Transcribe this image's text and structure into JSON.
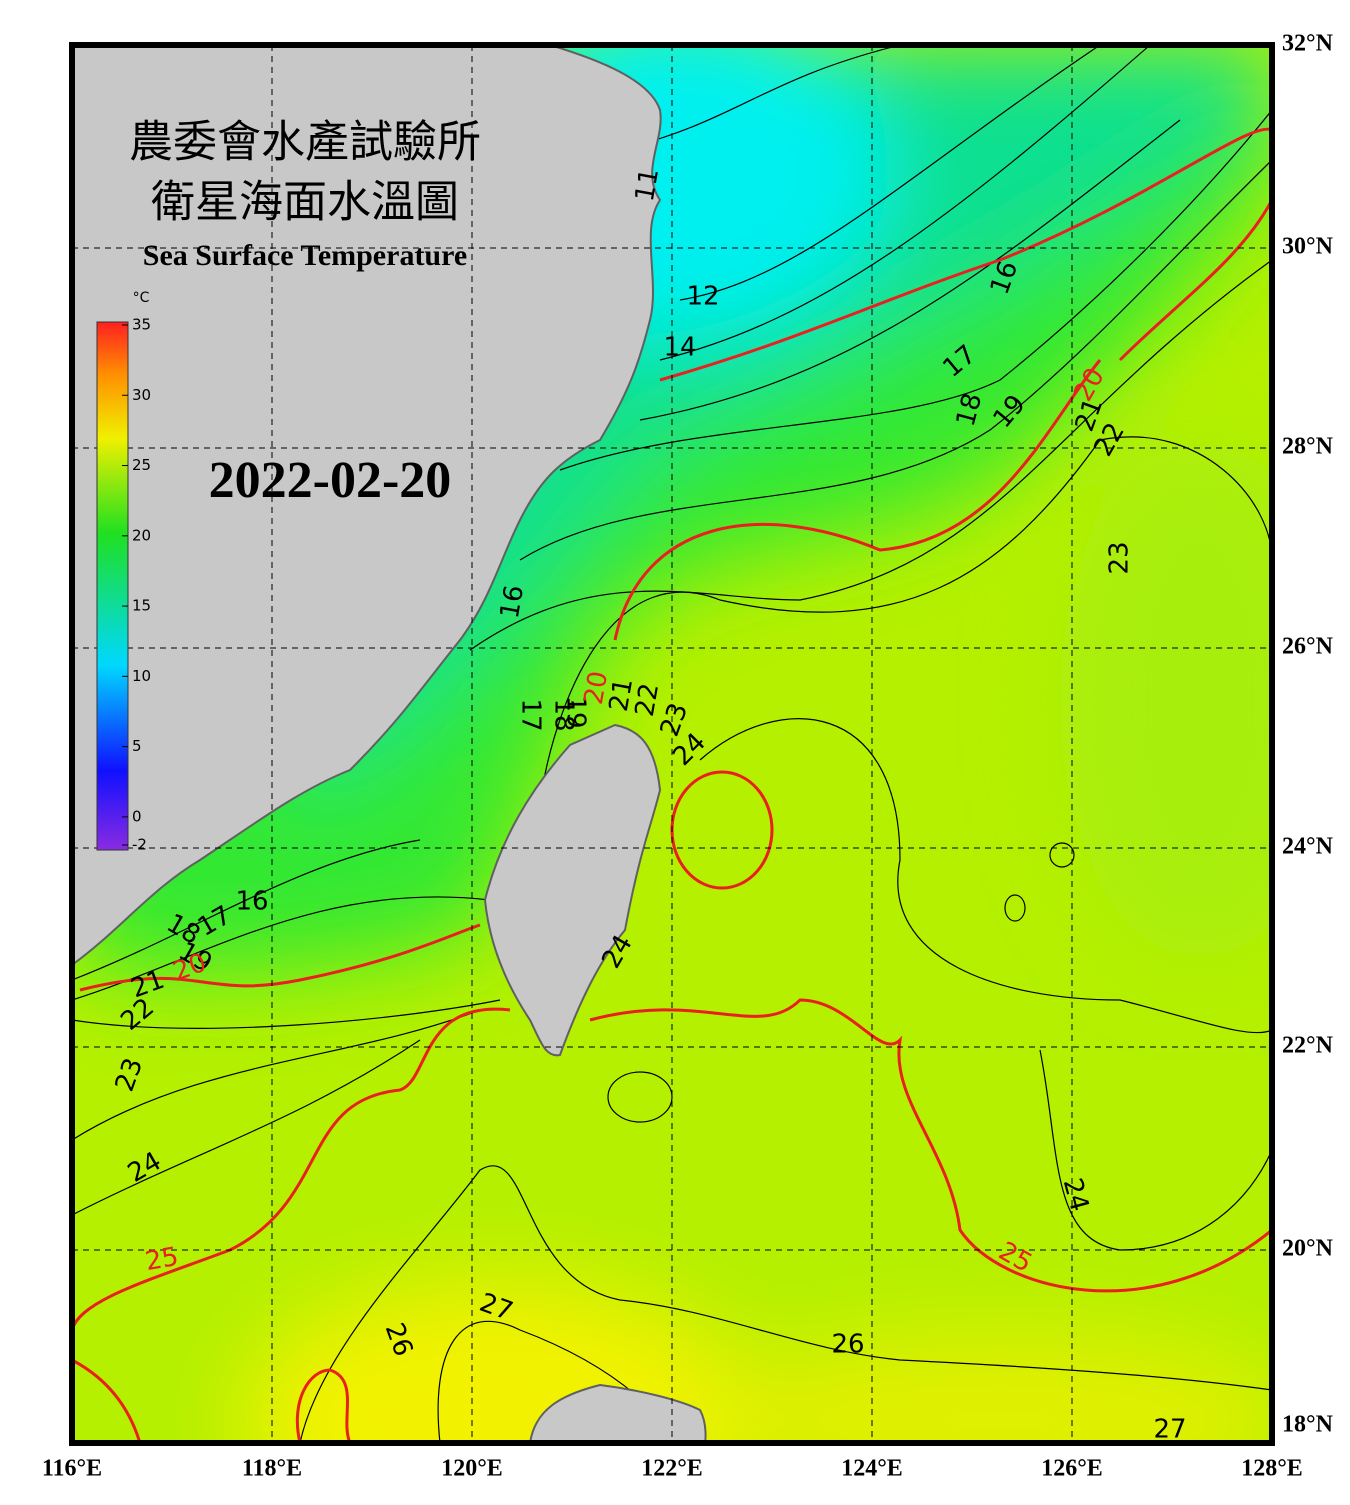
{
  "header": {
    "title_zh": "農委會水產試驗所",
    "subtitle_zh": "衛星海面水溫圖",
    "title_en": "Sea Surface Temperature",
    "date": "2022-02-20"
  },
  "colorbar": {
    "unit": "°C",
    "lim": [
      -2,
      35
    ],
    "ticks": [
      35,
      30,
      25,
      20,
      15,
      10,
      5,
      0,
      -2
    ]
  },
  "lat_labels": [
    "32°N",
    "30°N",
    "28°N",
    "26°N",
    "24°N",
    "22°N",
    "20°N",
    "18°N"
  ],
  "lon_labels": [
    "116°E",
    "118°E",
    "120°E",
    "122°E",
    "124°E",
    "126°E",
    "128°E"
  ],
  "contour_labels": [
    11,
    12,
    14,
    16,
    17,
    18,
    19,
    20,
    21,
    22,
    23,
    16,
    17,
    18,
    19,
    20,
    21,
    22,
    23,
    24,
    24,
    16,
    17,
    18,
    19,
    20,
    21,
    22,
    23,
    24,
    25,
    26,
    27,
    26,
    24,
    25,
    27
  ]
}
